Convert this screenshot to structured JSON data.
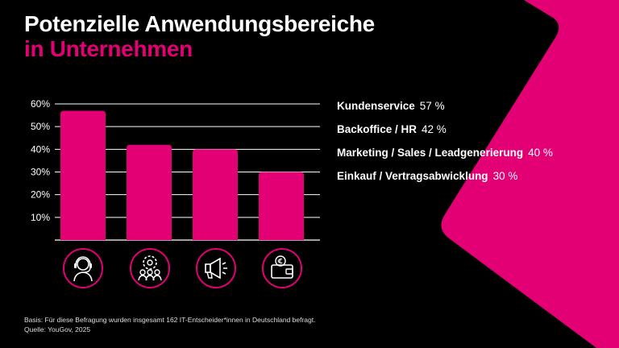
{
  "title_line1": "Potenzielle Anwendungsbereiche",
  "title_line2": "in Unternehmen",
  "chart_data": {
    "type": "bar",
    "categories": [
      "Kundenservice",
      "Backoffice / HR",
      "Marketing / Sales / Leadgenerierung",
      "Einkauf / Vertragsabwicklung"
    ],
    "values": [
      57,
      42,
      40,
      30
    ],
    "value_labels": [
      "57 %",
      "42 %",
      "40 %",
      "30 %"
    ],
    "yticks": [
      10,
      20,
      30,
      40,
      50,
      60
    ],
    "ytick_labels": [
      "10%",
      "20%",
      "30%",
      "40%",
      "50%",
      "60%"
    ],
    "ylim": [
      0,
      60
    ],
    "grid": true,
    "legend": "right",
    "icons": [
      "headset-agent-icon",
      "team-gear-icon",
      "megaphone-icon",
      "wallet-euro-icon"
    ]
  },
  "colors": {
    "accent": "#e20074",
    "background": "#000000",
    "text": "#ffffff"
  },
  "footer": {
    "basis": "Basis: Für diese Befragung wurden insgesamt 162 IT-Entscheider*innen in Deutschland befragt.",
    "source": "Quelle: YouGov, 2025"
  }
}
